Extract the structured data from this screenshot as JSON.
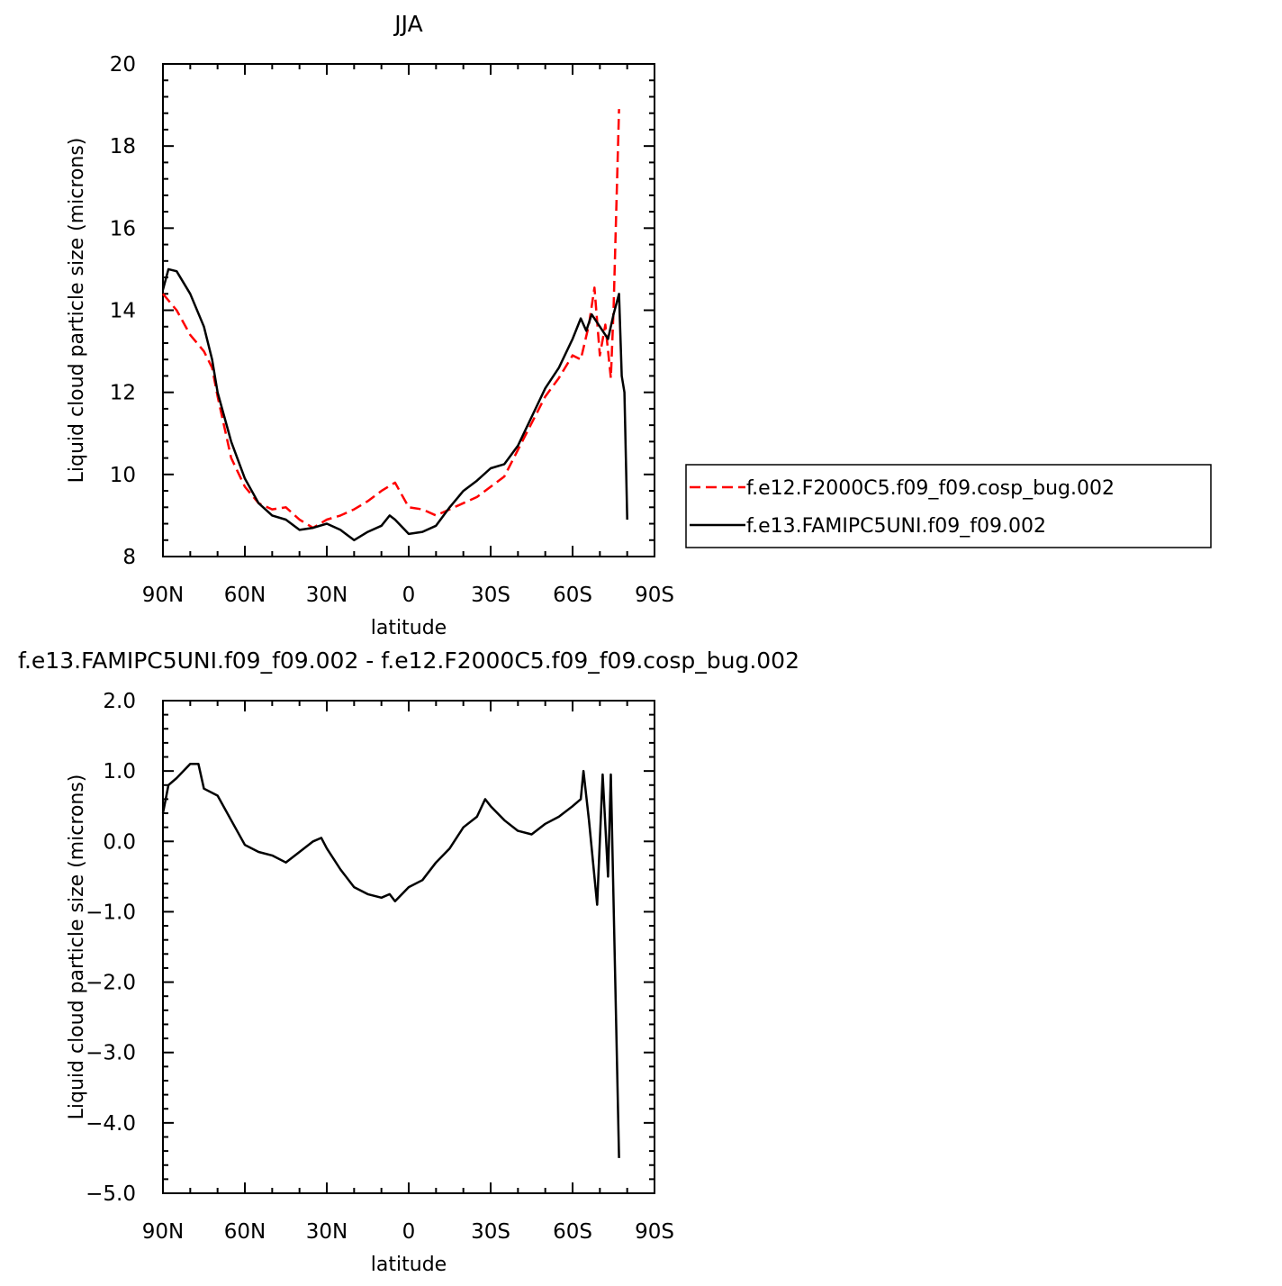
{
  "chart_data": [
    {
      "type": "line",
      "title": "JJA",
      "xlabel": "latitude",
      "ylabel": "Liquid cloud particle size (microns)",
      "xlim": [
        90,
        -90
      ],
      "xticks": [
        {
          "value": 90,
          "label": "90N"
        },
        {
          "value": 60,
          "label": "60N"
        },
        {
          "value": 30,
          "label": "30N"
        },
        0,
        {
          "value": -30,
          "label": "30S"
        },
        {
          "value": -60,
          "label": "60S"
        },
        {
          "value": -90,
          "label": "90S"
        }
      ],
      "ylim": [
        8,
        20
      ],
      "yticks": [
        8,
        10,
        12,
        14,
        16,
        18,
        20
      ],
      "legend": "right",
      "series": [
        {
          "name": "f.e12.F2000C5.f09_f09.cosp_bug.002",
          "color": "#ff0000",
          "dashed": true,
          "x": [
            90,
            85,
            80,
            75,
            72,
            70,
            65,
            60,
            55,
            50,
            45,
            40,
            35,
            30,
            25,
            20,
            15,
            10,
            5,
            0,
            -5,
            -10,
            -15,
            -20,
            -25,
            -30,
            -35,
            -40,
            -45,
            -50,
            -55,
            -60,
            -63,
            -66,
            -68,
            -70,
            -72,
            -74,
            -75,
            -77
          ],
          "values": [
            14.4,
            14.0,
            13.4,
            13.0,
            12.6,
            11.9,
            10.4,
            9.7,
            9.3,
            9.15,
            9.2,
            8.9,
            8.7,
            8.9,
            9.0,
            9.15,
            9.35,
            9.6,
            9.8,
            9.2,
            9.15,
            9.0,
            9.15,
            9.3,
            9.45,
            9.7,
            9.95,
            10.6,
            11.25,
            11.9,
            12.35,
            12.9,
            12.8,
            13.65,
            14.55,
            12.9,
            13.65,
            12.35,
            14.0,
            18.9
          ]
        },
        {
          "name": "f.e13.FAMIPC5UNI.f09_f09.002",
          "color": "#000000",
          "dashed": false,
          "x": [
            90,
            88,
            85,
            80,
            75,
            72,
            70,
            65,
            60,
            55,
            50,
            45,
            40,
            35,
            30,
            25,
            20,
            15,
            10,
            7,
            5,
            0,
            -5,
            -10,
            -15,
            -20,
            -25,
            -30,
            -35,
            -40,
            -45,
            -50,
            -55,
            -60,
            -63,
            -65,
            -67,
            -70,
            -73,
            -75,
            -77,
            -78,
            -79,
            -80
          ],
          "values": [
            14.5,
            15.0,
            14.95,
            14.4,
            13.6,
            12.8,
            12.0,
            10.8,
            9.9,
            9.3,
            9.0,
            8.9,
            8.65,
            8.7,
            8.8,
            8.65,
            8.4,
            8.6,
            8.75,
            9.0,
            8.9,
            8.55,
            8.6,
            8.75,
            9.2,
            9.6,
            9.85,
            10.15,
            10.25,
            10.7,
            11.4,
            12.1,
            12.6,
            13.3,
            13.8,
            13.5,
            13.9,
            13.6,
            13.3,
            13.9,
            14.4,
            12.4,
            12.0,
            8.9
          ]
        }
      ]
    },
    {
      "type": "line",
      "title": "f.e13.FAMIPC5UNI.f09_f09.002 - f.e12.F2000C5.f09_f09.cosp_bug.002",
      "xlabel": "latitude",
      "ylabel": "Liquid cloud particle size (microns)",
      "xlim": [
        90,
        -90
      ],
      "xticks": [
        {
          "value": 90,
          "label": "90N"
        },
        {
          "value": 60,
          "label": "60N"
        },
        {
          "value": 30,
          "label": "30N"
        },
        0,
        {
          "value": -30,
          "label": "30S"
        },
        {
          "value": -60,
          "label": "60S"
        },
        {
          "value": -90,
          "label": "90S"
        }
      ],
      "ylim": [
        -5,
        2
      ],
      "yticks": [
        {
          "value": 2,
          "label": "2.0"
        },
        {
          "value": 1,
          "label": "1.0"
        },
        {
          "value": 0,
          "label": "0.0"
        },
        {
          "value": -1,
          "label": "−1.0"
        },
        {
          "value": -2,
          "label": "−2.0"
        },
        {
          "value": -3,
          "label": "−3.0"
        },
        {
          "value": -4,
          "label": "−4.0"
        },
        {
          "value": -5,
          "label": "−5.0"
        }
      ],
      "series": [
        {
          "color": "#000000",
          "dashed": false,
          "x": [
            90,
            88,
            85,
            80,
            77,
            75,
            70,
            65,
            60,
            55,
            50,
            45,
            40,
            35,
            32,
            30,
            25,
            20,
            15,
            10,
            7,
            5,
            0,
            -5,
            -10,
            -15,
            -20,
            -25,
            -28,
            -30,
            -35,
            -40,
            -45,
            -50,
            -55,
            -60,
            -63,
            -64,
            -66,
            -69,
            -71,
            -73,
            -74,
            -77
          ],
          "values": [
            0.4,
            0.8,
            0.9,
            1.1,
            1.1,
            0.75,
            0.65,
            0.3,
            -0.05,
            -0.15,
            -0.2,
            -0.3,
            -0.15,
            0.0,
            0.05,
            -0.1,
            -0.4,
            -0.65,
            -0.75,
            -0.8,
            -0.75,
            -0.85,
            -0.65,
            -0.55,
            -0.3,
            -0.1,
            0.2,
            0.35,
            0.6,
            0.5,
            0.3,
            0.15,
            0.1,
            0.25,
            0.35,
            0.5,
            0.6,
            1.0,
            0.3,
            -0.9,
            0.95,
            -0.5,
            0.95,
            -4.5
          ]
        }
      ]
    }
  ]
}
